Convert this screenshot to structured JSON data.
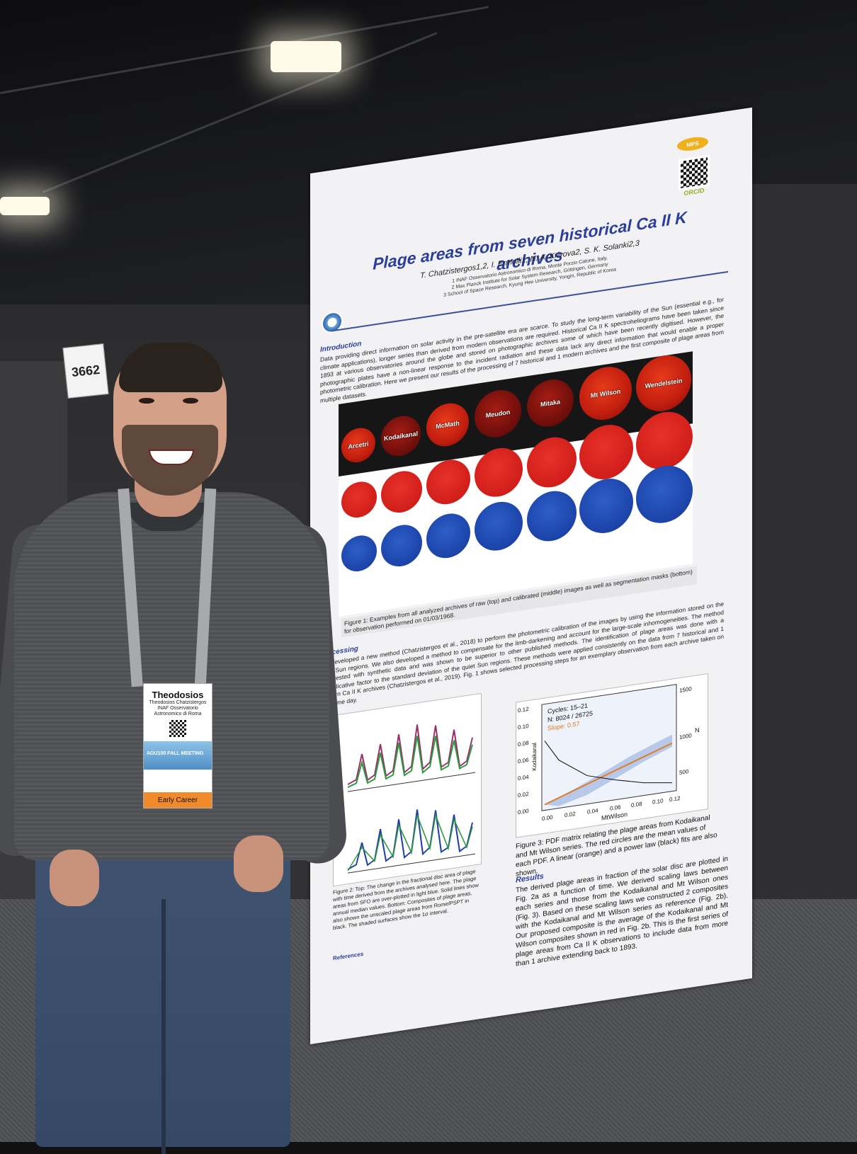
{
  "booth_number": "3662",
  "poster": {
    "title": "Plage areas from seven historical Ca II K archives",
    "authors": "T. Chatzistergos1,2, I. Ermolli1, N. A. Krivova2, S. K. Solanki2,3",
    "affiliations": [
      "1 INAF Osservatorio Astronomico di Roma, Monte Porzio Catone, Italy,",
      "2 Max Planck Institute for Solar System Research, Göttingen, Germany",
      "3 School of Space Research, Kyung Hee University, Yongin, Republic of Korea"
    ],
    "logo_mps": "MPS",
    "orcid": "ORCID",
    "introduction": {
      "heading": "Introduction",
      "text": "Data providing direct information on solar activity in the pre-satellite era are scarce. To study the long-term variability of the Sun (essential e.g., for climate applications), longer series than derived from modern observations are required. Historical Ca II K spectroheliograms have been taken since 1893 at various observatories around the globe and stored on photographic archives some of which have been recently digitised. However, the photographic plates have a non-linear response to the incident radiation and these data lack any direct information that would enable a proper photometric calibration. Here we present our results of the processing of 7 historical and 1 modern archives and the first composite of plage areas from multiple datasets."
    },
    "archives": [
      "Arcetri",
      "Kodaikanal",
      "McMath",
      "Meudon",
      "Mitaka",
      "Mt Wilson",
      "Wendelstein"
    ],
    "figure1_caption": "Figure 1: Examples from all analyzed archives of raw (top) and calibrated (middle) images as well as segmentation masks (bottom) for observation performed on 01/03/1968.",
    "processing": {
      "heading": "Processing",
      "text": "We developed a new method (Chatzistergos et al., 2018) to perform the photometric calibration of the images by using the information stored on the quiet Sun regions. We also developed a method to compensate for the limb-darkening and account for the large-scale inhomogeneities. The method was tested with synthetic data and was shown to be superior to other published methods. The identification of plage areas was done with a multiplicative factor to the standard deviation of the quiet Sun regions. These methods were applied consistently on the data from 7 historical and 1 modern Ca II K archives (Chatzistergos et al., 2019). Fig. 1 shows selected processing steps for an exemplary observation from each archive taken on the same day."
    },
    "figure2_caption": "Figure 2: Top: The change in the fractional disc area of plage with time derived from the archives analysed here. The plage areas from SFO are over-plotted in light blue. Solid lines show annual median values. Bottom: Composites of plage areas, also shown the unscaled plage areas from Rome/PSPT in black. The shaded surfaces show the 1σ interval.",
    "figure3": {
      "legend_cycles": "Cycles: 15–21",
      "legend_n": "N: 8024 / 26725",
      "legend_slope": "Slope: 0.57",
      "xlabel": "MtWilson",
      "ylabel": "Kodaikanal",
      "ylabel_right": "N",
      "x_ticks": [
        "0.00",
        "0.02",
        "0.04",
        "0.06",
        "0.08",
        "0.10",
        "0.12"
      ],
      "y_ticks": [
        "0.00",
        "0.02",
        "0.04",
        "0.06",
        "0.08",
        "0.10",
        "0.12"
      ],
      "n_ticks": [
        "500",
        "1000",
        "1500"
      ]
    },
    "figure3_caption": "Figure 3: PDF matrix relating the plage areas from Kodaikanal and Mt Wilson series. The red circles are the mean values of each PDF. A linear (orange) and a power law (black) fits are also shown.",
    "results": {
      "heading": "Results",
      "text": "The derived plage areas in fraction of the solar disc are plotted in Fig. 2a as a function of time. We derived scaling laws between each series and those from the Kodaikanal and Mt Wilson ones (Fig. 3). Based on these scaling laws we constructed 2 composites with the Kodaikanal and Mt Wilson series as reference (Fig. 2b). Our proposed composite is the average of the Kodaikanal and Mt Wilson composites shown in red in Fig. 2b. This is the first series of plage areas from Ca II K observations to include data from more than 1 archive extending back to 1893."
    },
    "references_heading": "References"
  },
  "badge": {
    "first_name": "Theodosios",
    "full_name": "Theodosios Chatzistergos",
    "org": "INAF Osservatorio Astronomico di Roma",
    "event": "AGU100 FALL MEETING",
    "tag": "Early Career"
  }
}
